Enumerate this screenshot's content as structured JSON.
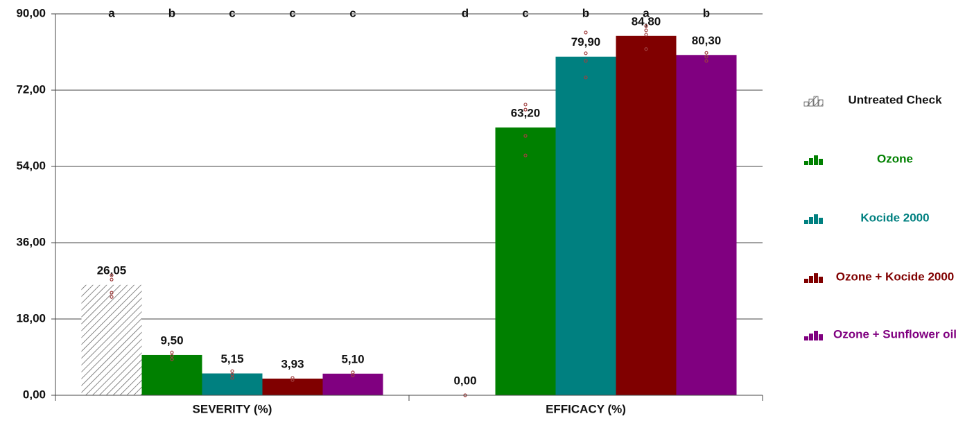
{
  "chart_data": {
    "type": "bar",
    "categories": [
      "SEVERITY (%)",
      "EFFICACY (%)"
    ],
    "ylim": [
      0,
      90
    ],
    "yticks": [
      {
        "value": 0,
        "label": "0,00"
      },
      {
        "value": 18,
        "label": "18,00"
      },
      {
        "value": 36,
        "label": "36,00"
      },
      {
        "value": 54,
        "label": "54,00"
      },
      {
        "value": 72,
        "label": "72,00"
      },
      {
        "value": 90,
        "label": "90,00"
      }
    ],
    "grid": true,
    "legend": "right",
    "series": [
      {
        "name": "Untreated Check",
        "color": "#ffffff",
        "pattern": "hatch",
        "legend_color": "#111111",
        "values": [
          26.05,
          0
        ],
        "value_labels": [
          "26,05",
          "0,00"
        ],
        "letters": [
          "a",
          "d"
        ],
        "replicates": [
          [
            28.3,
            27.3,
            24.2,
            23.2
          ],
          [
            0
          ]
        ]
      },
      {
        "name": "Ozone",
        "color": "#008000",
        "values": [
          9.5,
          63.2
        ],
        "value_labels": [
          "9,50",
          "63,20"
        ],
        "letters": [
          "b",
          "c"
        ],
        "replicates": [
          [
            10.1,
            9.3,
            8.5
          ],
          [
            68.6,
            67.4,
            61.2,
            56.6
          ]
        ]
      },
      {
        "name": "Kocide 2000",
        "color": "#008080",
        "values": [
          5.15,
          79.9
        ],
        "value_labels": [
          "5,15",
          "79,90"
        ],
        "letters": [
          "c",
          "b"
        ],
        "replicates": [
          [
            5.7,
            4.9,
            4.1
          ],
          [
            85.6,
            80.7,
            78.9,
            75.0
          ]
        ]
      },
      {
        "name": "Ozone + Kocide 2000",
        "color": "#800000",
        "values": [
          3.93,
          84.8
        ],
        "value_labels": [
          "3,93",
          "84,80"
        ],
        "letters": [
          "c",
          "a"
        ],
        "replicates": [
          [
            4.1,
            3.6
          ],
          [
            87.1,
            86.1,
            85.1,
            81.7
          ]
        ]
      },
      {
        "name": "Ozone + Sunflower oil",
        "color": "#800080",
        "values": [
          5.1,
          80.3
        ],
        "value_labels": [
          "5,10",
          "80,30"
        ],
        "letters": [
          "c",
          "b"
        ],
        "replicates": [
          [
            5.4,
            4.7
          ],
          [
            80.8,
            79.9,
            78.9
          ]
        ]
      }
    ]
  }
}
